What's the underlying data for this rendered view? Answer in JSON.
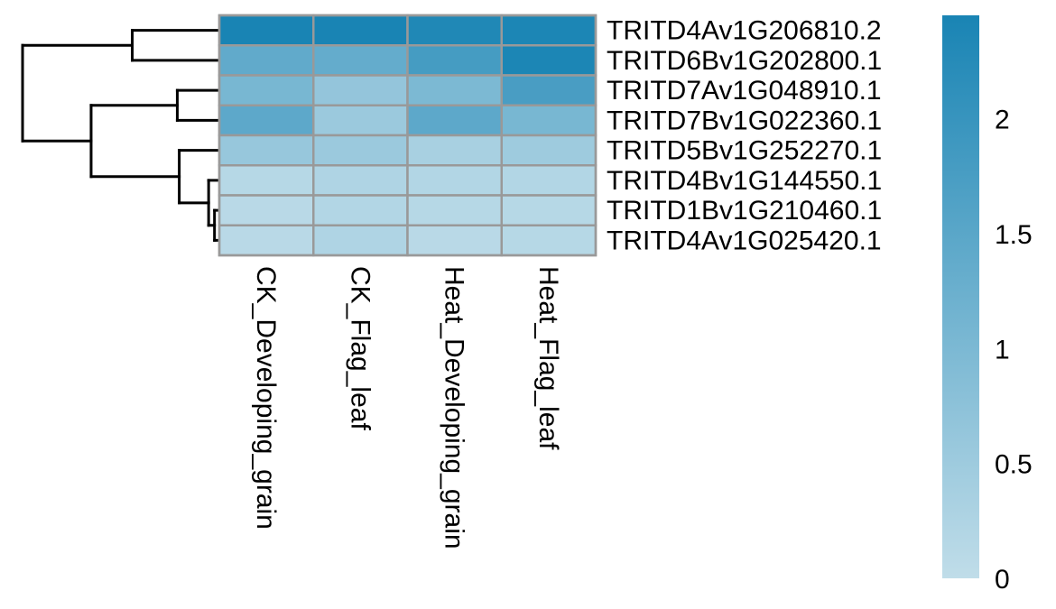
{
  "chart_data": {
    "type": "heatmap",
    "title": "",
    "xlabel": "",
    "ylabel": "",
    "columns": [
      "CK_Developing_grain",
      "CK_Flag_leaf",
      "Heat_Developing_grain",
      "Heat_Flag_leaf"
    ],
    "rows": [
      {
        "name": "TRITD4Av1G206810.2",
        "values": [
          2.45,
          2.45,
          2.35,
          2.4
        ]
      },
      {
        "name": "TRITD6Bv1G202800.1",
        "values": [
          1.4,
          1.35,
          1.8,
          2.4
        ]
      },
      {
        "name": "TRITD7Av1G048910.1",
        "values": [
          1.05,
          0.65,
          1.0,
          1.75
        ]
      },
      {
        "name": "TRITD7Bv1G022360.1",
        "values": [
          1.45,
          0.55,
          1.45,
          1.05
        ]
      },
      {
        "name": "TRITD5Bv1G252270.1",
        "values": [
          0.6,
          0.55,
          0.35,
          0.5
        ]
      },
      {
        "name": "TRITD4Bv1G144550.1",
        "values": [
          0.15,
          0.25,
          0.2,
          0.2
        ]
      },
      {
        "name": "TRITD1Bv1G210460.1",
        "values": [
          0.1,
          0.2,
          0.15,
          0.15
        ]
      },
      {
        "name": "TRITD4Av1G025420.1",
        "values": [
          0.1,
          0.25,
          0.1,
          0.15
        ]
      }
    ],
    "color_scale": {
      "min": 0,
      "max": 2.45,
      "low_color": "#c0dde9",
      "high_color": "#1984b4",
      "ticks": [
        0,
        0.5,
        1,
        1.5,
        2
      ],
      "tick_labels": [
        "0",
        "0.5",
        "1",
        "1.5",
        "2"
      ]
    },
    "cell_border_color": "#999999",
    "row_dendrogram": {
      "leaf_order": [
        0,
        1,
        2,
        3,
        4,
        5,
        6,
        7
      ],
      "merges": [
        {
          "id": "m1",
          "left": 6,
          "right": 7,
          "height": 0.02
        },
        {
          "id": "m2",
          "left": 5,
          "right": "m1",
          "height": 0.05
        },
        {
          "id": "m3",
          "left": 4,
          "right": "m2",
          "height": 0.2
        },
        {
          "id": "m4",
          "left": 2,
          "right": 3,
          "height": 0.21
        },
        {
          "id": "m5",
          "left": 0,
          "right": 1,
          "height": 0.44
        },
        {
          "id": "m6",
          "left": "m4",
          "right": "m3",
          "height": 0.65
        },
        {
          "id": "m7",
          "left": "m5",
          "right": "m6",
          "height": 1.0
        }
      ]
    }
  }
}
